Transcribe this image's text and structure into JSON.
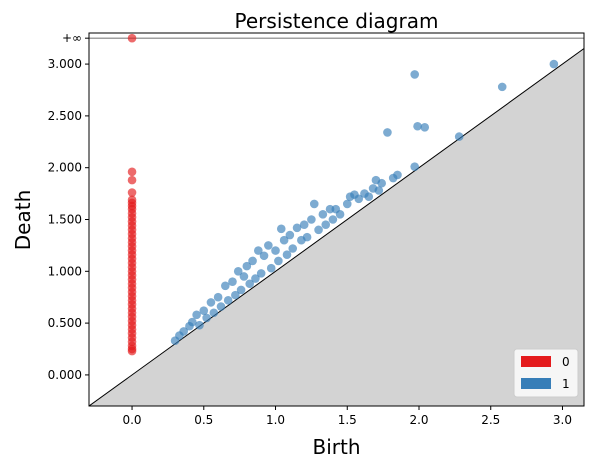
{
  "chart_data": {
    "type": "scatter",
    "title": "Persistence diagram",
    "xlabel": "Birth",
    "ylabel": "Death",
    "xlim": [
      -0.3,
      3.15
    ],
    "ylim": [
      -0.3,
      3.3
    ],
    "x_ticks": [
      0.0,
      0.5,
      1.0,
      1.5,
      2.0,
      2.5,
      3.0
    ],
    "x_tick_labels": [
      "0.0",
      "0.5",
      "1.0",
      "1.5",
      "2.0",
      "2.5",
      "3.0"
    ],
    "y_ticks": [
      0.0,
      0.5,
      1.0,
      1.5,
      2.0,
      2.5,
      3.0
    ],
    "y_tick_labels": [
      "0.000",
      "0.500",
      "1.000",
      "1.500",
      "2.000",
      "2.500",
      "3.000"
    ],
    "infinity_value": 3.25,
    "infinity_label": "+∞",
    "diagonal": true,
    "legend_position": "bottom-right",
    "series": [
      {
        "name": "0",
        "color": "#e41a1c",
        "points": [
          [
            0,
            3.25
          ],
          [
            0,
            1.96
          ],
          [
            0,
            1.88
          ],
          [
            0,
            1.76
          ],
          [
            0,
            1.69
          ],
          [
            0,
            1.66
          ],
          [
            0,
            1.63
          ],
          [
            0,
            1.6
          ],
          [
            0,
            1.56
          ],
          [
            0,
            1.52
          ],
          [
            0,
            1.48
          ],
          [
            0,
            1.44
          ],
          [
            0,
            1.4
          ],
          [
            0,
            1.36
          ],
          [
            0,
            1.32
          ],
          [
            0,
            1.28
          ],
          [
            0,
            1.24
          ],
          [
            0,
            1.2
          ],
          [
            0,
            1.16
          ],
          [
            0,
            1.12
          ],
          [
            0,
            1.08
          ],
          [
            0,
            1.04
          ],
          [
            0,
            1.0
          ],
          [
            0,
            0.96
          ],
          [
            0,
            0.92
          ],
          [
            0,
            0.88
          ],
          [
            0,
            0.84
          ],
          [
            0,
            0.8
          ],
          [
            0,
            0.76
          ],
          [
            0,
            0.72
          ],
          [
            0,
            0.68
          ],
          [
            0,
            0.64
          ],
          [
            0,
            0.6
          ],
          [
            0,
            0.56
          ],
          [
            0,
            0.52
          ],
          [
            0,
            0.48
          ],
          [
            0,
            0.44
          ],
          [
            0,
            0.4
          ],
          [
            0,
            0.36
          ],
          [
            0,
            0.32
          ],
          [
            0,
            0.28
          ],
          [
            0,
            0.25
          ],
          [
            0,
            0.23
          ]
        ]
      },
      {
        "name": "1",
        "color": "#377eb8",
        "points": [
          [
            0.3,
            0.33
          ],
          [
            0.33,
            0.38
          ],
          [
            0.36,
            0.42
          ],
          [
            0.4,
            0.47
          ],
          [
            0.42,
            0.51
          ],
          [
            0.45,
            0.58
          ],
          [
            0.47,
            0.48
          ],
          [
            0.5,
            0.62
          ],
          [
            0.52,
            0.55
          ],
          [
            0.55,
            0.7
          ],
          [
            0.57,
            0.6
          ],
          [
            0.6,
            0.75
          ],
          [
            0.62,
            0.66
          ],
          [
            0.65,
            0.86
          ],
          [
            0.67,
            0.72
          ],
          [
            0.7,
            0.9
          ],
          [
            0.72,
            0.77
          ],
          [
            0.74,
            1.0
          ],
          [
            0.76,
            0.82
          ],
          [
            0.78,
            0.95
          ],
          [
            0.8,
            1.05
          ],
          [
            0.82,
            0.88
          ],
          [
            0.84,
            1.1
          ],
          [
            0.86,
            0.93
          ],
          [
            0.88,
            1.2
          ],
          [
            0.9,
            0.98
          ],
          [
            0.92,
            1.15
          ],
          [
            0.95,
            1.25
          ],
          [
            0.97,
            1.03
          ],
          [
            1.0,
            1.2
          ],
          [
            1.02,
            1.1
          ],
          [
            1.04,
            1.41
          ],
          [
            1.06,
            1.3
          ],
          [
            1.08,
            1.16
          ],
          [
            1.1,
            1.35
          ],
          [
            1.12,
            1.22
          ],
          [
            1.15,
            1.42
          ],
          [
            1.18,
            1.3
          ],
          [
            1.2,
            1.45
          ],
          [
            1.22,
            1.33
          ],
          [
            1.25,
            1.5
          ],
          [
            1.27,
            1.65
          ],
          [
            1.3,
            1.4
          ],
          [
            1.33,
            1.55
          ],
          [
            1.35,
            1.45
          ],
          [
            1.38,
            1.6
          ],
          [
            1.4,
            1.5
          ],
          [
            1.42,
            1.6
          ],
          [
            1.45,
            1.55
          ],
          [
            1.5,
            1.65
          ],
          [
            1.52,
            1.72
          ],
          [
            1.55,
            1.74
          ],
          [
            1.58,
            1.7
          ],
          [
            1.62,
            1.75
          ],
          [
            1.65,
            1.72
          ],
          [
            1.68,
            1.8
          ],
          [
            1.7,
            1.88
          ],
          [
            1.72,
            1.78
          ],
          [
            1.74,
            1.85
          ],
          [
            1.78,
            2.34
          ],
          [
            1.82,
            1.9
          ],
          [
            1.85,
            1.93
          ],
          [
            1.97,
            2.01
          ],
          [
            1.97,
            2.9
          ],
          [
            1.99,
            2.4
          ],
          [
            2.04,
            2.39
          ],
          [
            2.28,
            2.3
          ],
          [
            2.58,
            2.78
          ],
          [
            2.94,
            3.0
          ]
        ]
      }
    ]
  }
}
